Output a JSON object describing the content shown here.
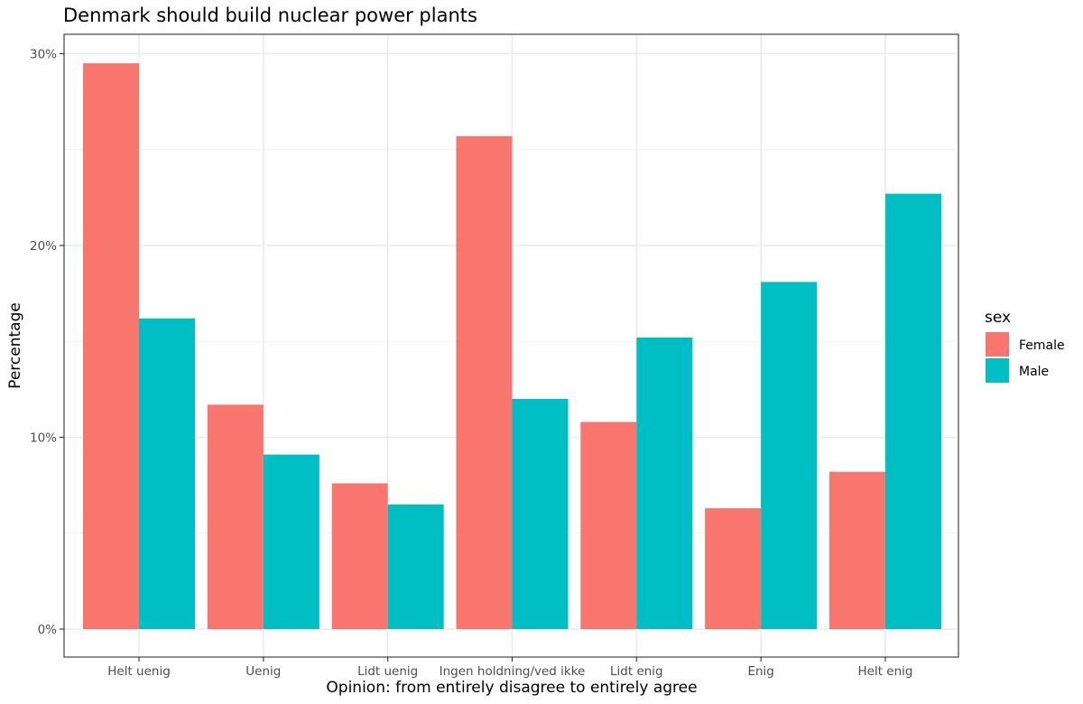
{
  "chart_data": {
    "type": "bar",
    "title": "Denmark should build nuclear power plants",
    "xlabel": "Opinion: from entirely disagree to entirely agree",
    "ylabel": "Percentage",
    "categories": [
      "Helt uenig",
      "Uenig",
      "Lidt uenig",
      "Ingen holdning/ved ikke",
      "Lidt enig",
      "Enig",
      "Helt enig"
    ],
    "series": [
      {
        "name": "Female",
        "color": "#F8766D",
        "values": [
          29.5,
          11.7,
          7.6,
          25.7,
          10.8,
          6.3,
          8.2
        ]
      },
      {
        "name": "Male",
        "color": "#00BFC4",
        "values": [
          16.2,
          9.1,
          6.5,
          12.0,
          15.2,
          18.1,
          22.7
        ]
      }
    ],
    "ylim": [
      0,
      30
    ],
    "yticks": [
      0,
      10,
      20,
      30
    ],
    "ytick_labels": [
      "0%",
      "10%",
      "20%",
      "30%"
    ],
    "legend": {
      "title": "sex",
      "position": "right"
    },
    "grid": true
  }
}
